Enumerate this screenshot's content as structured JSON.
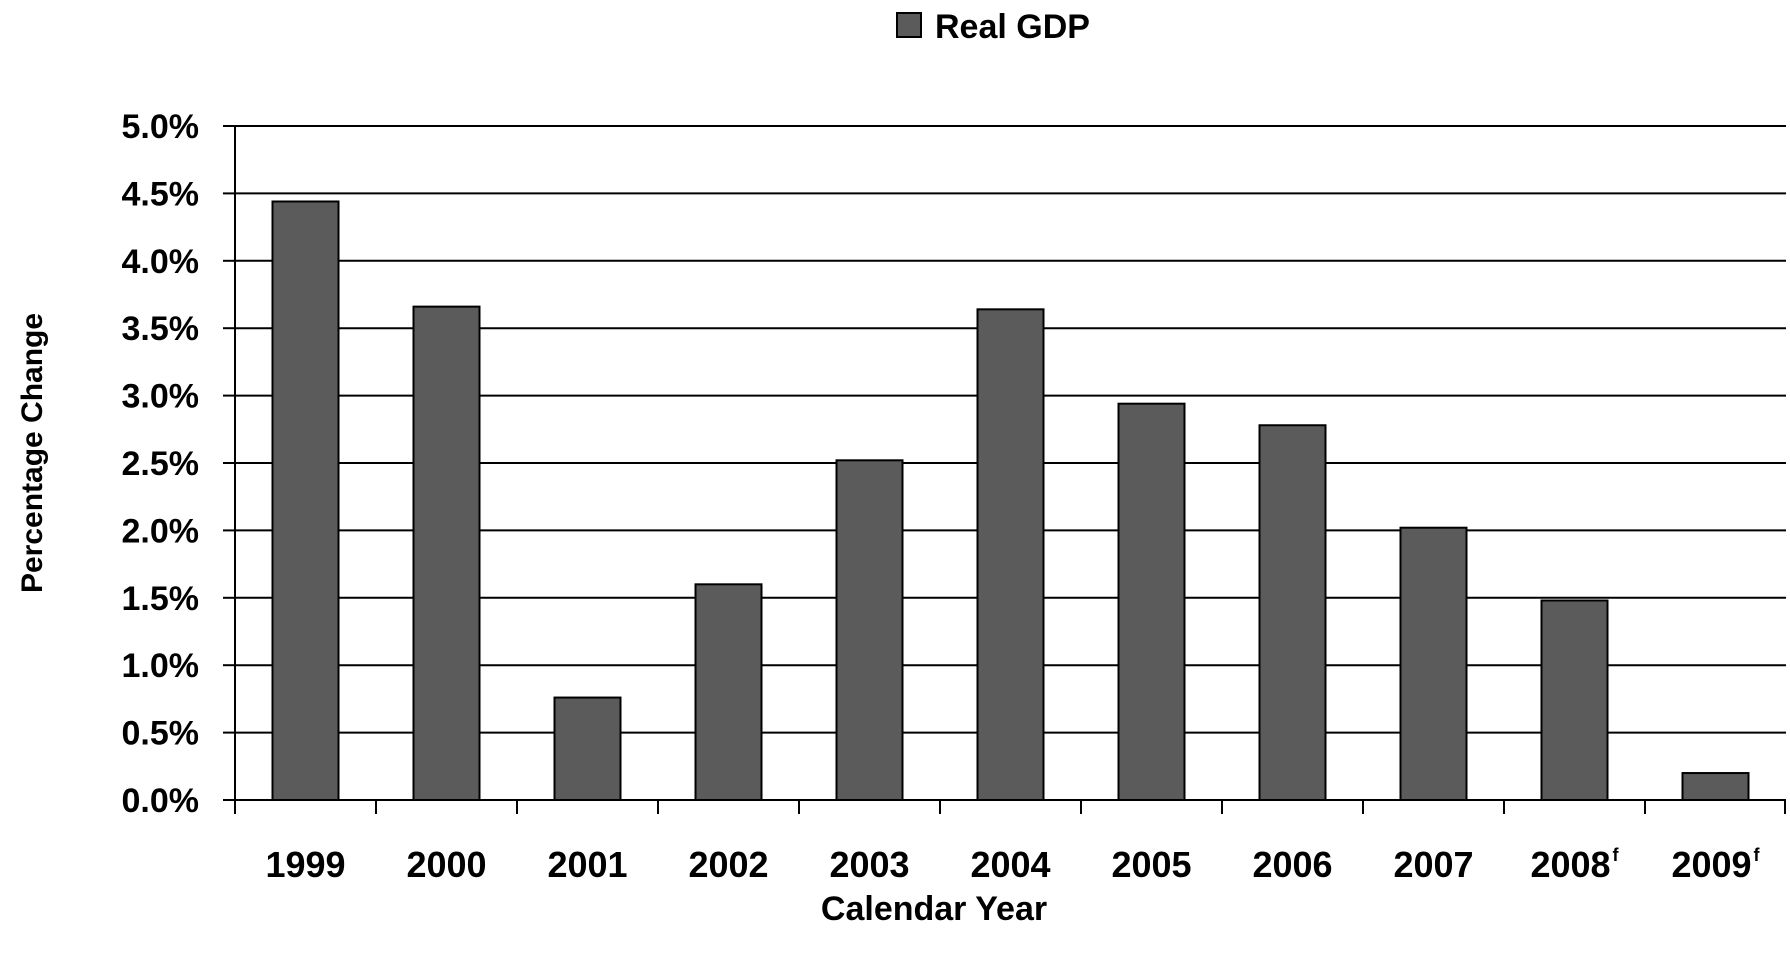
{
  "chart_data": {
    "type": "bar",
    "categories": [
      "1999",
      "2000",
      "2001",
      "2002",
      "2003",
      "2004",
      "2005",
      "2006",
      "2007",
      "2008",
      "2009"
    ],
    "category_superscripts": [
      "",
      "",
      "",
      "",
      "",
      "",
      "",
      "",
      "",
      "f",
      "f"
    ],
    "series": [
      {
        "name": "Real GDP",
        "color": "#5b5b5b",
        "values": [
          4.44,
          3.66,
          0.76,
          1.6,
          2.52,
          3.64,
          2.94,
          2.78,
          2.02,
          1.48,
          0.2
        ]
      }
    ],
    "title": "",
    "xlabel": "Calendar Year",
    "ylabel": "Percentage Change",
    "ylim": [
      0,
      5
    ],
    "yticks": [
      0,
      0.5,
      1,
      1.5,
      2,
      2.5,
      3,
      3.5,
      4,
      4.5,
      5
    ],
    "ytick_labels": [
      "0.0%",
      "0.5%",
      "1.0%",
      "1.5%",
      "2.0%",
      "2.5%",
      "3.0%",
      "3.5%",
      "4.0%",
      "4.5%",
      "5.0%"
    ],
    "grid": true,
    "legend_position": "top-center"
  }
}
